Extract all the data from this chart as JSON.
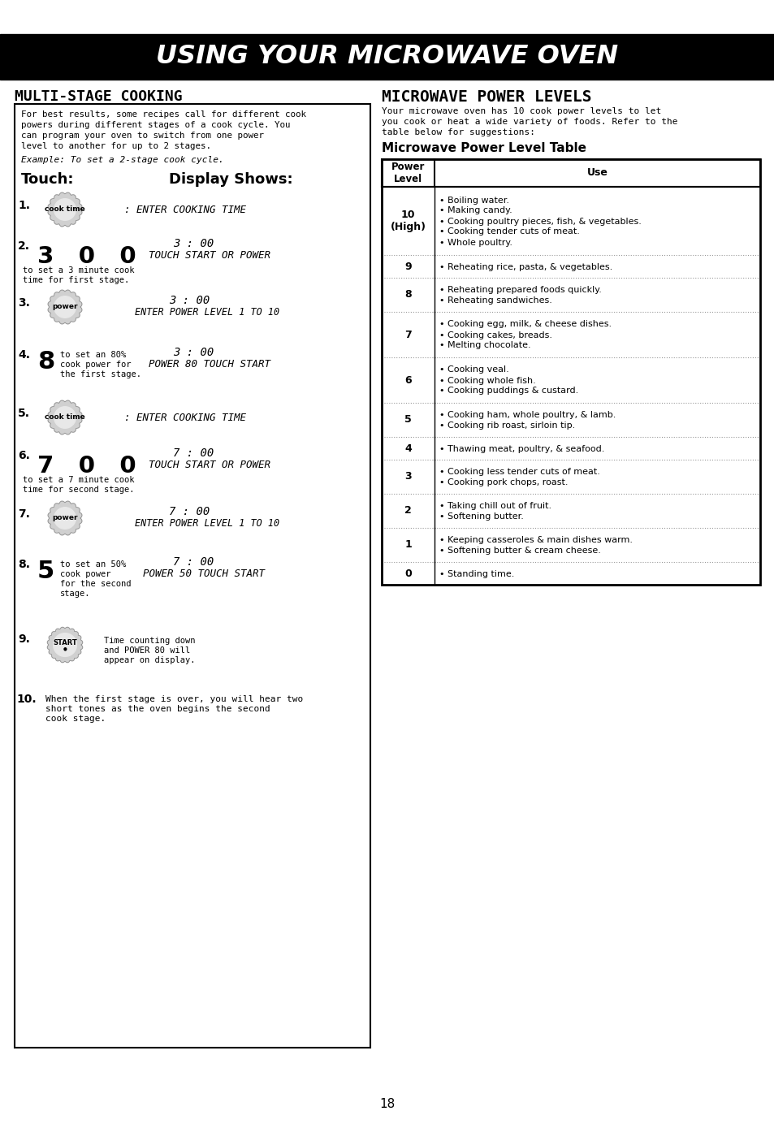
{
  "title": "USING YOUR MICROWAVE OVEN",
  "left_section_title": "MULTI-STAGE COOKING",
  "right_section_title": "MICROWAVE POWER LEVELS",
  "right_intro_lines": [
    "Your microwave oven has 10 cook power levels to let",
    "you cook or heat a wide variety of foods. Refer to the",
    "table below for suggestions:"
  ],
  "table_subtitle": "Microwave Power Level Table",
  "left_intro_lines": [
    "For best results, some recipes call for different cook",
    "powers during different stages of a cook cycle. You",
    "can program your oven to switch from one power",
    "level to another for up to 2 stages."
  ],
  "example_label": "Example: To set a 2-stage cook cycle.",
  "touch_label": "Touch:",
  "display_label": "Display Shows:",
  "table_rows": [
    {
      "level": "10\n(High)",
      "uses": [
        "Boiling water.",
        "Making candy.",
        "Cooking poultry pieces, fish, & vegetables.",
        "Cooking tender cuts of meat.",
        "Whole poultry."
      ]
    },
    {
      "level": "9",
      "uses": [
        "Reheating rice, pasta, & vegetables."
      ]
    },
    {
      "level": "8",
      "uses": [
        "Reheating prepared foods quickly.",
        "Reheating sandwiches."
      ]
    },
    {
      "level": "7",
      "uses": [
        "Cooking egg, milk, & cheese dishes.",
        "Cooking cakes, breads.",
        "Melting chocolate."
      ]
    },
    {
      "level": "6",
      "uses": [
        "Cooking veal.",
        "Cooking whole fish.",
        "Cooking puddings & custard."
      ]
    },
    {
      "level": "5",
      "uses": [
        "Cooking ham, whole poultry, & lamb.",
        "Cooking rib roast, sirloin tip."
      ]
    },
    {
      "level": "4",
      "uses": [
        "Thawing meat, poultry, & seafood."
      ]
    },
    {
      "level": "3",
      "uses": [
        "Cooking less tender cuts of meat.",
        "Cooking pork chops, roast."
      ]
    },
    {
      "level": "2",
      "uses": [
        "Taking chill out of fruit.",
        "Softening butter."
      ]
    },
    {
      "level": "1",
      "uses": [
        "Keeping casseroles & main dishes warm.",
        "Softening butter & cream cheese."
      ]
    },
    {
      "level": "0",
      "uses": [
        "Standing time."
      ]
    }
  ],
  "page_num": "18"
}
